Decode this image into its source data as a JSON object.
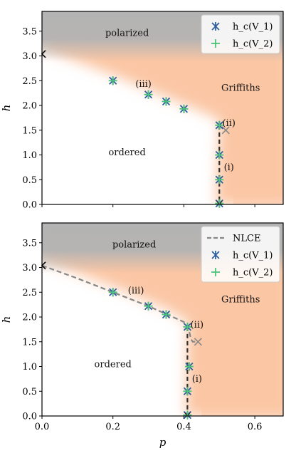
{
  "chart_data": [
    {
      "type": "scatter",
      "panel": "top",
      "xlabel": "",
      "ylabel": "h",
      "xlim": [
        0.0,
        0.68
      ],
      "ylim": [
        0.0,
        3.9
      ],
      "xticks": [
        0.0,
        0.2,
        0.4,
        0.6
      ],
      "xtick_labels_shown": false,
      "yticks": [
        0.0,
        0.5,
        1.0,
        1.5,
        2.0,
        2.5,
        3.0,
        3.5
      ],
      "ytick_labels": [
        "0.0",
        "0.5",
        "1.0",
        "1.5",
        "2.0",
        "2.5",
        "3.0",
        "3.5"
      ],
      "regions": [
        {
          "label": "polarized",
          "x": 0.24,
          "y": 3.46
        },
        {
          "label": "ordered",
          "x": 0.24,
          "y": 1.05
        },
        {
          "label": "Griffiths",
          "x": 0.56,
          "y": 2.35
        }
      ],
      "annotations": [
        {
          "label": "(i)",
          "x": 0.527,
          "y": 0.75
        },
        {
          "label": "(ii)",
          "x": 0.527,
          "y": 1.64
        },
        {
          "label": "(iii)",
          "x": 0.286,
          "y": 2.43
        }
      ],
      "legend": {
        "placement": "top-right",
        "entries": [
          "h_c(V_1)",
          "h_c(V_2)"
        ]
      },
      "series": [
        {
          "name": "h_c(V_1)",
          "marker": "asterisk",
          "color": "#2f5f9e",
          "x": [
            0.2,
            0.3,
            0.35,
            0.4,
            0.5,
            0.5,
            0.5,
            0.5
          ],
          "y": [
            2.5,
            2.22,
            2.08,
            1.93,
            1.6,
            1.0,
            0.5,
            0.02
          ]
        },
        {
          "name": "h_c(V_2)",
          "marker": "plus",
          "color": "#4cc27a",
          "x": [
            0.2,
            0.3,
            0.35,
            0.4,
            0.5,
            0.5,
            0.5,
            0.5
          ],
          "y": [
            2.5,
            2.22,
            2.08,
            1.93,
            1.6,
            1.0,
            0.5,
            0.02
          ]
        }
      ],
      "outlier_marker": {
        "x": 0.518,
        "y": 1.5,
        "color": "#888888"
      },
      "boundary_lines": [
        {
          "style": "dashed",
          "color": "#333333",
          "x": [
            0.5,
            0.5
          ],
          "y": [
            1.6,
            0.0
          ]
        }
      ],
      "axis_tick_marker": {
        "x": 0.0,
        "y": 3.04
      },
      "legend_colors": {
        "v1": "#2f5f9e",
        "v2": "#4cc27a"
      },
      "region_colors": {
        "polarized": "#b3b3b3",
        "griffiths": "#fbc6a4"
      }
    },
    {
      "type": "scatter",
      "panel": "bottom",
      "xlabel": "p",
      "ylabel": "h",
      "xlim": [
        0.0,
        0.68
      ],
      "ylim": [
        0.0,
        3.9
      ],
      "xticks": [
        0.0,
        0.2,
        0.4,
        0.6
      ],
      "xtick_labels": [
        "0.0",
        "0.2",
        "0.4",
        "0.6"
      ],
      "yticks": [
        0.0,
        0.5,
        1.0,
        1.5,
        2.0,
        2.5,
        3.0,
        3.5
      ],
      "ytick_labels": [
        "0.0",
        "0.5",
        "1.0",
        "1.5",
        "2.0",
        "2.5",
        "3.0",
        "3.5"
      ],
      "regions": [
        {
          "label": "polarized",
          "x": 0.26,
          "y": 3.46
        },
        {
          "label": "ordered",
          "x": 0.2,
          "y": 1.04
        },
        {
          "label": "Griffiths",
          "x": 0.56,
          "y": 2.35
        }
      ],
      "annotations": [
        {
          "label": "(i)",
          "x": 0.437,
          "y": 0.75
        },
        {
          "label": "(ii)",
          "x": 0.437,
          "y": 1.84
        },
        {
          "label": "(iii)",
          "x": 0.265,
          "y": 2.53
        }
      ],
      "legend": {
        "placement": "top-right",
        "entries": [
          "NLCE",
          "h_c(V_1)",
          "h_c(V_2)"
        ]
      },
      "nlce": {
        "name": "NLCE",
        "style": "dashed",
        "color": "#888888",
        "x": [
          0.0,
          0.1,
          0.2,
          0.3,
          0.35,
          0.4,
          0.412,
          0.416,
          0.42,
          0.425,
          0.44
        ],
        "y": [
          3.04,
          2.78,
          2.5,
          2.22,
          2.06,
          1.9,
          1.78,
          1.68,
          1.55,
          1.5,
          1.5
        ]
      },
      "series": [
        {
          "name": "h_c(V_1)",
          "marker": "asterisk",
          "color": "#2f5f9e",
          "x": [
            0.2,
            0.3,
            0.35,
            0.41,
            0.415,
            0.41,
            0.41
          ],
          "y": [
            2.5,
            2.22,
            2.05,
            1.8,
            1.0,
            0.5,
            0.02
          ]
        },
        {
          "name": "h_c(V_2)",
          "marker": "plus",
          "color": "#4cc27a",
          "x": [
            0.2,
            0.3,
            0.35,
            0.41,
            0.415,
            0.41,
            0.41
          ],
          "y": [
            2.5,
            2.22,
            2.05,
            1.8,
            1.0,
            0.5,
            0.02
          ]
        }
      ],
      "outlier_marker": {
        "x": 0.44,
        "y": 1.5,
        "color": "#888888"
      },
      "boundary_lines": [
        {
          "style": "dashed",
          "color": "#333333",
          "x": [
            0.41,
            0.41
          ],
          "y": [
            1.8,
            0.0
          ]
        }
      ],
      "axis_tick_marker": {
        "x": 0.0,
        "y": 3.04
      },
      "legend_colors": {
        "nlce": "#888888",
        "v1": "#2f5f9e",
        "v2": "#4cc27a"
      },
      "region_colors": {
        "polarized": "#b3b3b3",
        "griffiths": "#fbc6a4"
      }
    }
  ]
}
